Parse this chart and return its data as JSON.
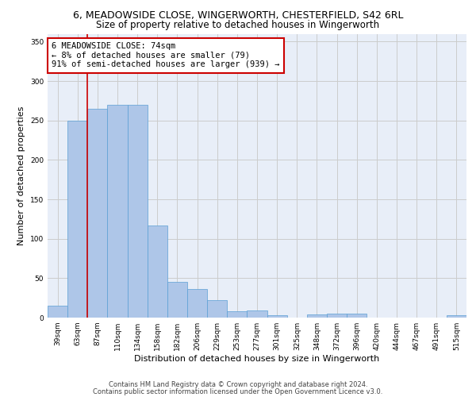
{
  "title_line1": "6, MEADOWSIDE CLOSE, WINGERWORTH, CHESTERFIELD, S42 6RL",
  "title_line2": "Size of property relative to detached houses in Wingerworth",
  "xlabel": "Distribution of detached houses by size in Wingerworth",
  "ylabel": "Number of detached properties",
  "categories": [
    "39sqm",
    "63sqm",
    "87sqm",
    "110sqm",
    "134sqm",
    "158sqm",
    "182sqm",
    "206sqm",
    "229sqm",
    "253sqm",
    "277sqm",
    "301sqm",
    "325sqm",
    "348sqm",
    "372sqm",
    "396sqm",
    "420sqm",
    "444sqm",
    "467sqm",
    "491sqm",
    "515sqm"
  ],
  "values": [
    15,
    250,
    265,
    270,
    270,
    117,
    45,
    36,
    22,
    8,
    9,
    3,
    0,
    4,
    5,
    5,
    0,
    0,
    0,
    0,
    3
  ],
  "bar_color": "#aec6e8",
  "bar_edge_color": "#5a9fd4",
  "bar_width": 1.0,
  "red_line_x": 1.5,
  "annotation_text": "6 MEADOWSIDE CLOSE: 74sqm\n← 8% of detached houses are smaller (79)\n91% of semi-detached houses are larger (939) →",
  "annotation_box_color": "#ffffff",
  "annotation_box_edge": "#cc0000",
  "red_line_color": "#cc0000",
  "ylim": [
    0,
    360
  ],
  "yticks": [
    0,
    50,
    100,
    150,
    200,
    250,
    300,
    350
  ],
  "grid_color": "#cccccc",
  "bg_color": "#e8eef8",
  "footer_line1": "Contains HM Land Registry data © Crown copyright and database right 2024.",
  "footer_line2": "Contains public sector information licensed under the Open Government Licence v3.0.",
  "title_fontsize": 9,
  "subtitle_fontsize": 8.5,
  "axis_label_fontsize": 8,
  "tick_fontsize": 6.5,
  "annotation_fontsize": 7.5,
  "footer_fontsize": 6
}
